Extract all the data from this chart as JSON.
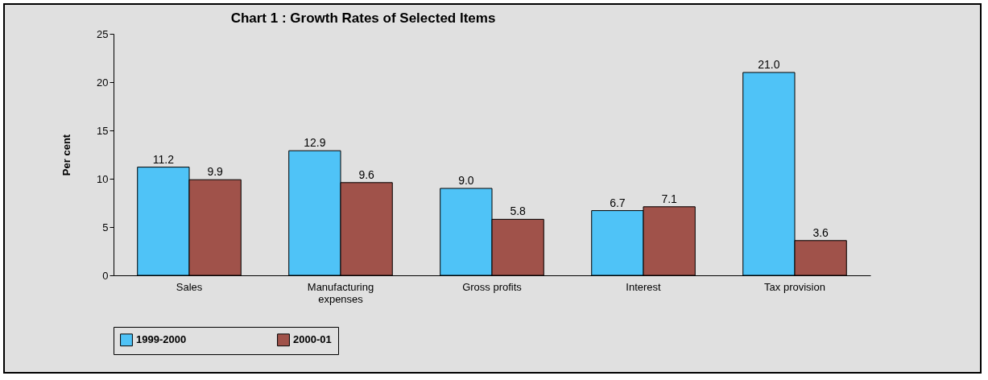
{
  "chart_data": {
    "type": "bar",
    "title": "Chart 1 : Growth Rates of Selected Items",
    "ylabel": "Per cent",
    "categories": [
      "Sales",
      "Manufacturing expenses",
      "Gross profits",
      "Interest",
      "Tax provision"
    ],
    "series": [
      {
        "name": "1999-2000",
        "color": "#4fc3f7",
        "values": [
          11.2,
          12.9,
          9.0,
          6.7,
          21.0
        ],
        "value_labels": [
          "11.2",
          "12.9",
          "9.0",
          "6.7",
          "21.0"
        ]
      },
      {
        "name": "2000-01",
        "color": "#a0524a",
        "values": [
          9.9,
          9.6,
          5.8,
          7.1,
          3.6
        ],
        "value_labels": [
          "9.9",
          "9.6",
          "5.8",
          "7.1",
          "3.6"
        ]
      }
    ],
    "ylim": [
      0,
      25
    ],
    "yticks": [
      0,
      5,
      10,
      15,
      20,
      25
    ],
    "legend": "bottom left"
  }
}
